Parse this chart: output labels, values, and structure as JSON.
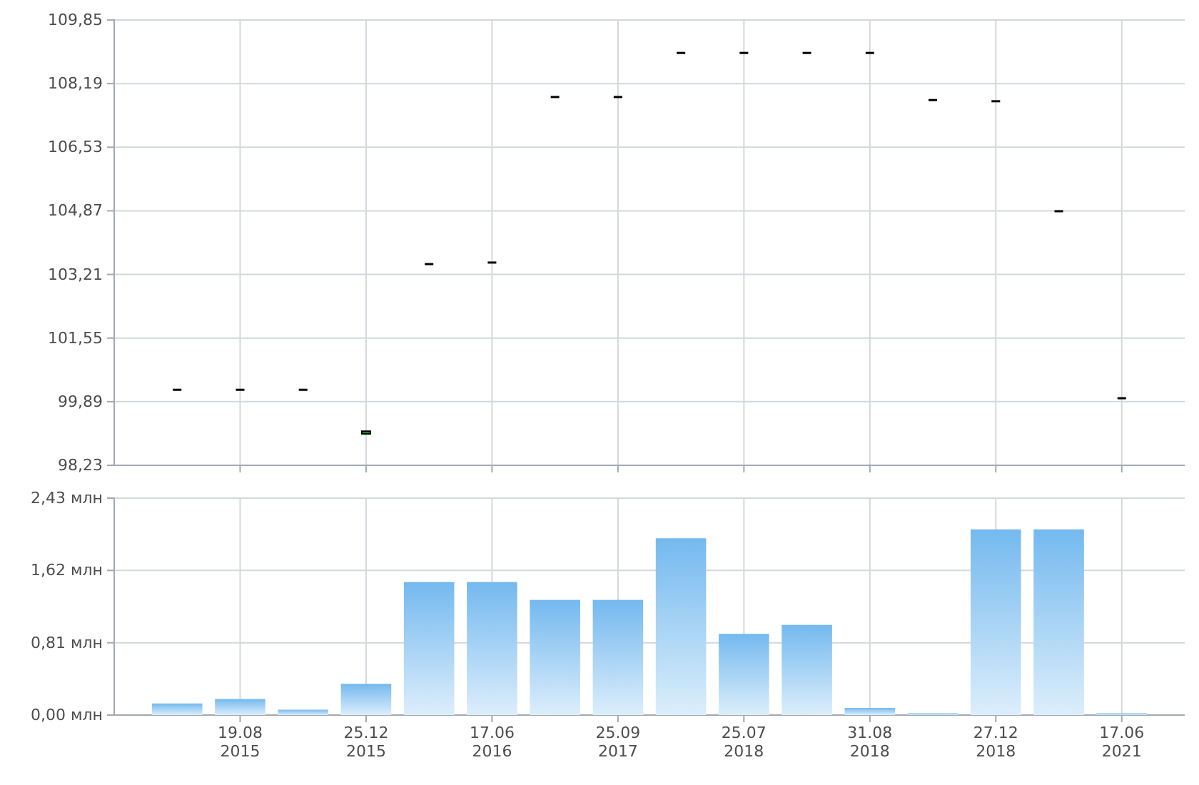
{
  "chart_data": [
    {
      "type": "candlestick",
      "categories": [
        null,
        null,
        null,
        null,
        null,
        null,
        null,
        null,
        null,
        null,
        null,
        null,
        null,
        null,
        null,
        null
      ],
      "ohlc": [
        [
          100.2,
          100.2,
          100.2,
          100.2
        ],
        [
          100.2,
          100.2,
          100.2,
          100.2
        ],
        [
          100.2,
          100.2,
          100.2,
          100.2
        ],
        [
          99.05,
          99.12,
          99.05,
          99.12
        ],
        [
          103.48,
          103.48,
          103.48,
          103.48
        ],
        [
          103.52,
          103.52,
          103.52,
          103.52
        ],
        [
          107.84,
          107.84,
          107.84,
          107.84
        ],
        [
          107.84,
          107.84,
          107.84,
          107.84
        ],
        [
          108.99,
          108.99,
          108.99,
          108.99
        ],
        [
          108.99,
          108.99,
          108.99,
          108.99
        ],
        [
          108.99,
          108.99,
          108.99,
          108.99
        ],
        [
          108.99,
          108.99,
          108.99,
          108.99
        ],
        [
          107.76,
          107.76,
          107.76,
          107.76
        ],
        [
          107.73,
          107.73,
          107.73,
          107.73
        ],
        [
          104.86,
          104.86,
          104.86,
          104.86
        ],
        [
          99.98,
          99.98,
          99.98,
          99.98
        ]
      ],
      "ylim": [
        98.23,
        109.85
      ],
      "yticks": [
        {
          "value": 98.23,
          "label": "98,23"
        },
        {
          "value": 99.89,
          "label": "99,89"
        },
        {
          "value": 101.55,
          "label": "101,55"
        },
        {
          "value": 103.21,
          "label": "103,21"
        },
        {
          "value": 104.87,
          "label": "104,87"
        },
        {
          "value": 106.53,
          "label": "106,53"
        },
        {
          "value": 108.19,
          "label": "108,19"
        },
        {
          "value": 109.85,
          "label": "109,85"
        }
      ],
      "grid": true,
      "tick_labels": "y"
    },
    {
      "type": "bar",
      "categories": [
        null,
        "19.08\n2015",
        null,
        "25.12\n2015",
        null,
        "17.06\n2016",
        null,
        "25.09\n2017",
        null,
        "25.07\n2018",
        null,
        "31.08\n2018",
        null,
        "27.12\n2018",
        null,
        "17.06\n2021"
      ],
      "values": [
        0.13,
        0.18,
        0.06,
        0.35,
        1.49,
        1.49,
        1.29,
        1.29,
        1.98,
        0.91,
        1.01,
        0.08,
        0.02,
        2.08,
        2.08,
        0.02
      ],
      "color": "#74b9ef",
      "ylim": [
        0,
        2.43
      ],
      "yticks": [
        {
          "value": 0,
          "label": "0,00 млн"
        },
        {
          "value": 0.81,
          "label": "0,81 млн"
        },
        {
          "value": 1.62,
          "label": "1,62 млн"
        },
        {
          "value": 2.43,
          "label": "2,43 млн"
        }
      ],
      "grid": true
    }
  ]
}
